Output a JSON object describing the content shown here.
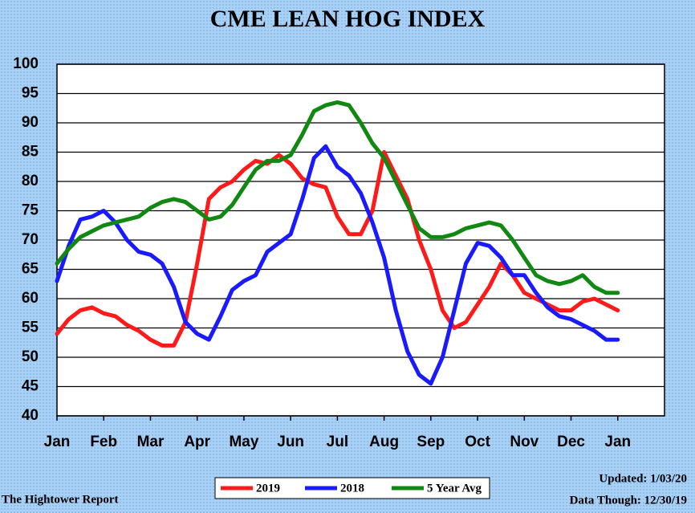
{
  "chart_data": {
    "type": "line",
    "title": "CME LEAN HOG INDEX",
    "x": [
      0,
      0.25,
      0.5,
      0.75,
      1,
      1.25,
      1.5,
      1.75,
      2,
      2.25,
      2.5,
      2.75,
      3,
      3.25,
      3.5,
      3.75,
      4,
      4.25,
      4.5,
      4.75,
      5,
      5.25,
      5.5,
      5.75,
      6,
      6.25,
      6.5,
      6.75,
      7,
      7.25,
      7.5,
      7.75,
      8,
      8.25,
      8.5,
      8.75,
      9,
      9.25,
      9.5,
      9.75,
      10,
      10.25,
      10.5,
      10.75,
      11,
      11.25,
      11.5,
      11.75,
      12
    ],
    "series": [
      {
        "name": "2019",
        "color": "#ff1a1a",
        "values": [
          54,
          56.5,
          58,
          58.5,
          57.5,
          57,
          55.5,
          54.5,
          53,
          52,
          52,
          56,
          66,
          77,
          79,
          80,
          82,
          83.5,
          83,
          84.5,
          83,
          80.5,
          79.5,
          79,
          74,
          71,
          71,
          75,
          85,
          81,
          77,
          70,
          65,
          58,
          55,
          56,
          59,
          62,
          66,
          64,
          61,
          60,
          59,
          58,
          58,
          59.5,
          60,
          59,
          58
        ]
      },
      {
        "name": "2018",
        "color": "#1a1aff",
        "values": [
          63,
          69,
          73.5,
          74,
          75,
          73,
          70,
          68,
          67.5,
          66,
          62,
          56,
          54,
          53,
          57,
          61.5,
          63,
          64,
          68,
          69.5,
          71,
          77,
          84,
          86,
          82.5,
          81,
          78,
          73,
          67,
          58,
          51,
          47,
          45.5,
          50,
          58,
          66,
          69.5,
          69,
          67,
          64,
          64,
          61,
          58.5,
          57,
          56.5,
          55.5,
          54.5,
          53,
          53
        ]
      },
      {
        "name": "5 Year Avg",
        "color": "#118811",
        "values": [
          66,
          68.5,
          70.5,
          71.5,
          72.5,
          73,
          73.5,
          74,
          75.5,
          76.5,
          77,
          76.5,
          75,
          73.5,
          74,
          76,
          79,
          82,
          83.5,
          83.5,
          84.5,
          88,
          92,
          93,
          93.5,
          93,
          90,
          86.5,
          84,
          80,
          76,
          72,
          70.5,
          70.5,
          71,
          72,
          72.5,
          73,
          72.5,
          70,
          67,
          64,
          63,
          62.5,
          63,
          64,
          62,
          61,
          61
        ]
      }
    ],
    "xlim": [
      0,
      13
    ],
    "xticks": [
      {
        "value": 0,
        "label": "Jan"
      },
      {
        "value": 1,
        "label": "Feb"
      },
      {
        "value": 2,
        "label": "Mar"
      },
      {
        "value": 3,
        "label": "Apr"
      },
      {
        "value": 4,
        "label": "May"
      },
      {
        "value": 5,
        "label": "Jun"
      },
      {
        "value": 6,
        "label": "Jul"
      },
      {
        "value": 7,
        "label": "Aug"
      },
      {
        "value": 8,
        "label": "Sep"
      },
      {
        "value": 9,
        "label": "Oct"
      },
      {
        "value": 10,
        "label": "Nov"
      },
      {
        "value": 11,
        "label": "Dec"
      },
      {
        "value": 12,
        "label": "Jan"
      }
    ],
    "ylim": [
      40,
      100
    ],
    "yticks": [
      40,
      45,
      50,
      55,
      60,
      65,
      70,
      75,
      80,
      85,
      90,
      95,
      100
    ],
    "grid": true,
    "legend": "bottom",
    "source": "The Hightower Report",
    "updated": "Updated:  1/03/20",
    "data_through": "Data Though: 12/30/19"
  }
}
